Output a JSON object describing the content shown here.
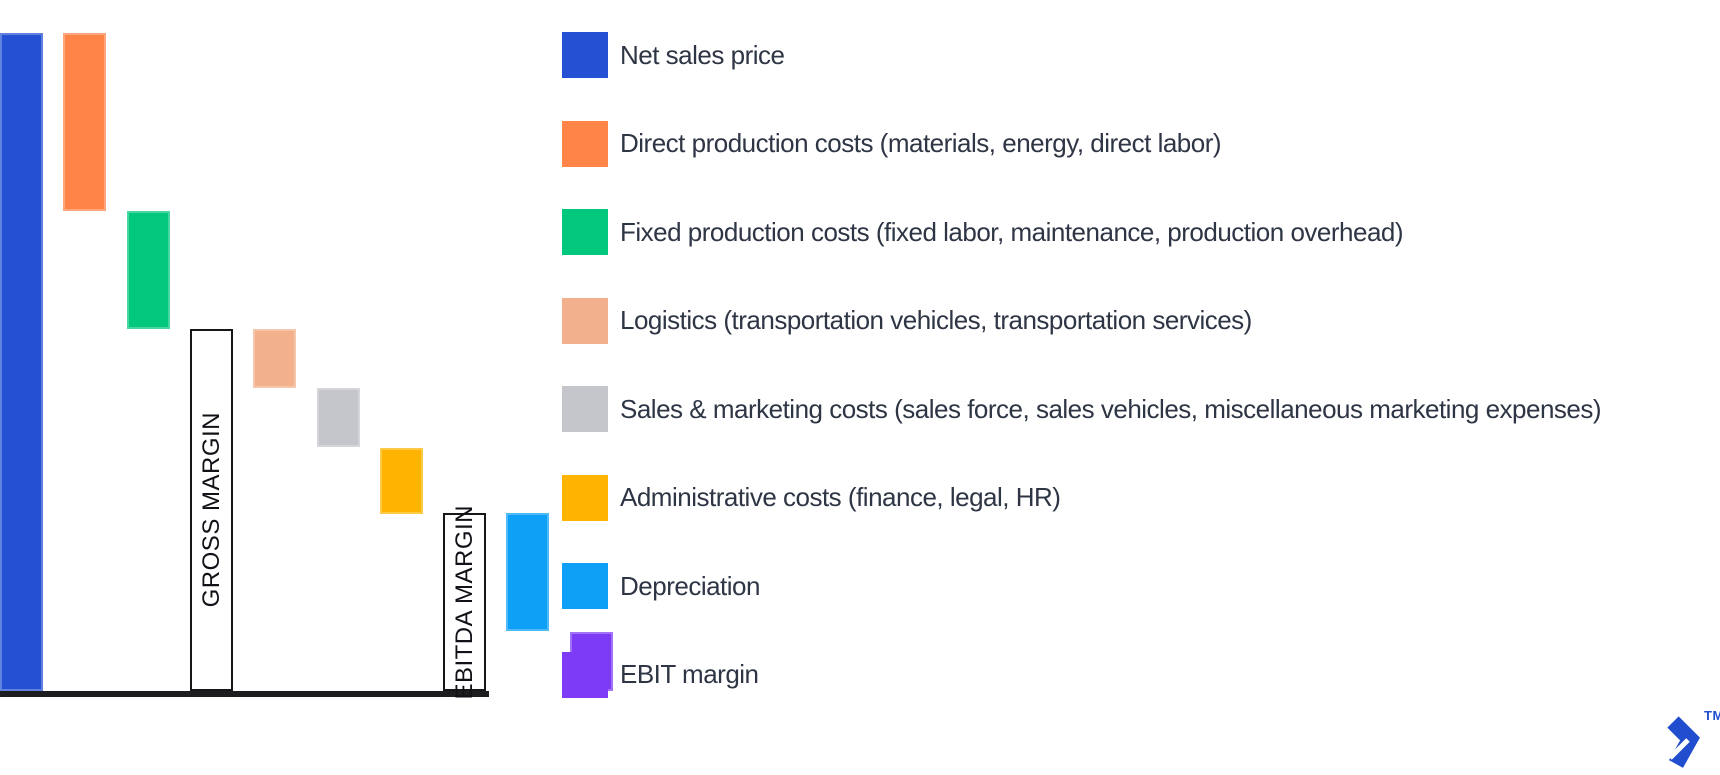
{
  "page": {
    "background": "#ffffff"
  },
  "chart": {
    "baseline_color": "#1d1d20",
    "axis": {
      "x_start": 0,
      "x_end": 489,
      "y": 691
    }
  },
  "chart_data": {
    "type": "waterfall",
    "title": "",
    "value_note": "values estimated from bar geometry as percent of net sales price; no numeric labels are shown in the image",
    "ylim": [
      0,
      100
    ],
    "grid": false,
    "legend_position": "right",
    "bars": [
      {
        "label": "Net sales price",
        "color": "#2451d3",
        "kind": "total",
        "from": 0,
        "to": 100,
        "value": 100
      },
      {
        "label": "Direct production costs (materials, energy, direct labor)",
        "color": "#ff8448",
        "kind": "cost",
        "from": 100,
        "to": 73,
        "value": 27
      },
      {
        "label": "Fixed production costs (fixed labor, maintenance, production overhead)",
        "color": "#02c87e",
        "kind": "cost",
        "from": 73,
        "to": 55,
        "value": 18
      },
      {
        "label": "GROSS MARGIN",
        "color": "#ffffff",
        "kind": "subtotal",
        "from": 55,
        "to": 0,
        "value": 55
      },
      {
        "label": "Logistics (transportation vehicles, transportation services)",
        "color": "#f2b18c",
        "kind": "cost",
        "from": 55,
        "to": 46,
        "value": 9
      },
      {
        "label": "Sales & marketing costs (sales force, sales vehicles, miscellaneous marketing expenses)",
        "color": "#c5c6cc",
        "kind": "cost",
        "from": 46,
        "to": 37,
        "value": 9
      },
      {
        "label": "Administrative costs (finance, legal, HR)",
        "color": "#ffb402",
        "kind": "cost",
        "from": 37,
        "to": 27,
        "value": 10
      },
      {
        "label": "EBITDA MARGIN",
        "color": "#ffffff",
        "kind": "subtotal",
        "from": 27,
        "to": 0,
        "value": 27
      },
      {
        "label": "Depreciation",
        "color": "#0da0f6",
        "kind": "cost",
        "from": 27,
        "to": 9,
        "value": 18
      },
      {
        "label": "EBIT margin",
        "color": "#7d3bf5",
        "kind": "final",
        "from": 9,
        "to": 0,
        "value": 9
      }
    ]
  },
  "legend": {
    "items": [
      {
        "label": "Net sales price",
        "color": "#2451d3"
      },
      {
        "label": "Direct production costs (materials, energy, direct labor)",
        "color": "#ff8448"
      },
      {
        "label": "Fixed production costs (fixed labor, maintenance, production overhead)",
        "color": "#02c87e"
      },
      {
        "label": "Logistics (transportation vehicles, transportation services)",
        "color": "#f2b18c"
      },
      {
        "label": "Sales & marketing costs (sales force, sales vehicles, miscellaneous marketing expenses)",
        "color": "#c5c6cc"
      },
      {
        "label": "Administrative costs (finance, legal, HR)",
        "color": "#ffb402"
      },
      {
        "label": "Depreciation",
        "color": "#0da0f6"
      },
      {
        "label": "EBIT margin",
        "color": "#7d3bf5"
      }
    ]
  },
  "branding": {
    "trademark": "TM",
    "logo_color": "#204ecf"
  }
}
